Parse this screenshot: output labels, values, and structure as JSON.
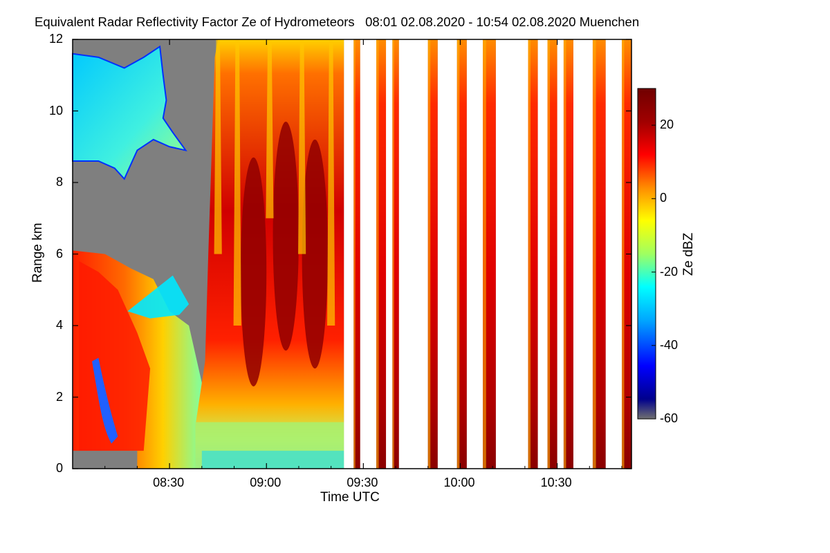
{
  "chart_data": {
    "type": "heatmap",
    "title": "Equivalent Radar Reflectivity Factor Ze of Hydrometeors   08:01 02.08.2020 - 10:54 02.08.2020 Muenchen",
    "xlabel": "Time UTC",
    "ylabel": "Range km",
    "x_ticks": [
      "08:30",
      "09:00",
      "09:30",
      "10:00",
      "10:30"
    ],
    "x_tick_minutes": [
      30,
      60,
      90,
      120,
      150
    ],
    "xlim_minutes": [
      0,
      173
    ],
    "y_ticks": [
      "0",
      "2",
      "4",
      "6",
      "8",
      "10",
      "12"
    ],
    "ylim": [
      0,
      12
    ],
    "colorbar": {
      "label": "Ze dBZ",
      "ticks": [
        "20",
        "0",
        "-20",
        "-40",
        "-60"
      ],
      "tick_values": [
        20,
        0,
        -20,
        -40,
        -60
      ],
      "range": [
        -60,
        30
      ],
      "colormap": [
        "#707070",
        "#00008c",
        "#0000ff",
        "#00a8ff",
        "#00ffff",
        "#a0ff60",
        "#ffff00",
        "#ff8c00",
        "#ff0000",
        "#a00000",
        "#700000"
      ]
    },
    "data_gaps_minutes": [
      [
        84,
        87
      ],
      [
        89,
        94
      ],
      [
        97,
        99
      ],
      [
        101,
        110
      ],
      [
        113,
        119
      ],
      [
        122,
        127
      ],
      [
        131,
        141
      ],
      [
        144,
        147
      ],
      [
        150,
        152
      ],
      [
        155,
        161
      ],
      [
        165,
        170
      ]
    ],
    "data_segments_minutes": [
      [
        87,
        89
      ],
      [
        94,
        97
      ],
      [
        99,
        101
      ],
      [
        110,
        113
      ],
      [
        119,
        122
      ],
      [
        127,
        131
      ],
      [
        141,
        144
      ],
      [
        147,
        150
      ],
      [
        152,
        155
      ],
      [
        161,
        165
      ],
      [
        170,
        173
      ]
    ],
    "nodata_color": "#ffffff",
    "clear_color": "#7f7f7f"
  }
}
